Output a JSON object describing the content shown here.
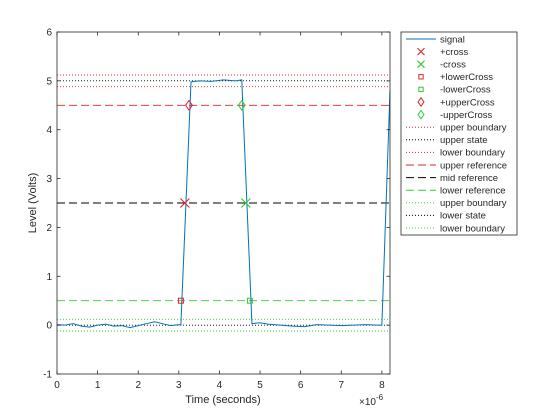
{
  "chart_data": {
    "type": "line",
    "xlabel": "Time (seconds)",
    "ylabel": "Level (Volts)",
    "x_exponent_label": "×10",
    "x_exponent_power": "-6",
    "x_scale": 1e-06,
    "xlim": [
      0,
      8.2
    ],
    "ylim": [
      -1,
      6
    ],
    "grid": false,
    "legend_placement": "outside-right-top",
    "x_ticks": [
      0,
      1,
      2,
      3,
      4,
      5,
      6,
      7,
      8
    ],
    "x_tick_labels": [
      "0",
      "1",
      "2",
      "3",
      "4",
      "5",
      "6",
      "7",
      "8"
    ],
    "y_ticks": [
      -1,
      0,
      1,
      2,
      3,
      4,
      5,
      6
    ],
    "y_tick_labels": [
      "-1",
      "0",
      "1",
      "2",
      "3",
      "4",
      "5",
      "6"
    ],
    "signal": {
      "name": "signal",
      "color": "#0072bd",
      "x": [
        0,
        0.2,
        0.4,
        0.6,
        0.8,
        1.0,
        1.2,
        1.4,
        1.6,
        1.8,
        2.0,
        2.2,
        2.4,
        2.6,
        2.8,
        3.0,
        3.05,
        3.3,
        3.5,
        3.8,
        4.1,
        4.4,
        4.55,
        4.8,
        5.0,
        5.2,
        5.5,
        5.8,
        6.1,
        6.4,
        6.7,
        7.0,
        7.3,
        7.6,
        7.9,
        8.0,
        8.2
      ],
      "y": [
        0.01,
        0.0,
        0.03,
        -0.02,
        -0.04,
        0.0,
        0.02,
        -0.02,
        -0.01,
        -0.05,
        -0.01,
        0.03,
        0.07,
        0.03,
        -0.01,
        0.01,
        0.0,
        4.98,
        5.0,
        4.99,
        5.02,
        5.0,
        5.02,
        0.03,
        0.05,
        0.02,
        0.0,
        -0.02,
        -0.03,
        0.01,
        0.0,
        -0.01,
        0.0,
        0.01,
        0.0,
        0.0,
        4.8
      ]
    },
    "reference_lines": [
      {
        "name": "upper boundary",
        "value": 5.12,
        "color": "#d9252a",
        "style": "dotted"
      },
      {
        "name": "upper state",
        "value": 5.0,
        "color": "#000000",
        "style": "dotted"
      },
      {
        "name": "lower boundary",
        "value": 4.88,
        "color": "#d9252a",
        "style": "dotted"
      },
      {
        "name": "upper reference",
        "value": 4.5,
        "color": "#d9252a",
        "style": "dashed"
      },
      {
        "name": "mid reference",
        "value": 2.5,
        "color": "#000000",
        "style": "dashed"
      },
      {
        "name": "lower reference",
        "value": 0.5,
        "color": "#34c834",
        "style": "dashed"
      },
      {
        "name": "upper boundary",
        "value": 0.12,
        "color": "#34c834",
        "style": "dotted"
      },
      {
        "name": "lower state",
        "value": 0.0,
        "color": "#000000",
        "style": "dotted"
      },
      {
        "name": "lower boundary",
        "value": -0.12,
        "color": "#34c834",
        "style": "dotted"
      }
    ],
    "markers": [
      {
        "name": "+cross",
        "x": 3.15,
        "y": 2.5,
        "marker": "x",
        "color": "#d9252a"
      },
      {
        "name": "-cross",
        "x": 4.65,
        "y": 2.5,
        "marker": "x",
        "color": "#34c834"
      },
      {
        "name": "+lowerCross",
        "x": 3.05,
        "y": 0.5,
        "marker": "square",
        "color": "#d9252a"
      },
      {
        "name": "-lowerCross",
        "x": 4.75,
        "y": 0.5,
        "marker": "square",
        "color": "#34c834"
      },
      {
        "name": "+upperCross",
        "x": 3.25,
        "y": 4.5,
        "marker": "diamond",
        "color": "#d9252a"
      },
      {
        "name": "-upperCross",
        "x": 4.55,
        "y": 4.5,
        "marker": "diamond",
        "color": "#34c834"
      }
    ],
    "legend": [
      {
        "label": "signal",
        "kind": "line",
        "style": "solid",
        "color": "#0072bd"
      },
      {
        "label": "+cross",
        "kind": "marker",
        "marker": "x",
        "color": "#d9252a"
      },
      {
        "label": "-cross",
        "kind": "marker",
        "marker": "x",
        "color": "#34c834"
      },
      {
        "label": "+lowerCross",
        "kind": "marker",
        "marker": "square",
        "color": "#d9252a"
      },
      {
        "label": "-lowerCross",
        "kind": "marker",
        "marker": "square",
        "color": "#34c834"
      },
      {
        "label": "+upperCross",
        "kind": "marker",
        "marker": "diamond",
        "color": "#d9252a"
      },
      {
        "label": "-upperCross",
        "kind": "marker",
        "marker": "diamond",
        "color": "#34c834"
      },
      {
        "label": "upper boundary",
        "kind": "line",
        "style": "dotted",
        "color": "#d9252a"
      },
      {
        "label": "upper state",
        "kind": "line",
        "style": "dotted",
        "color": "#000000"
      },
      {
        "label": "lower boundary",
        "kind": "line",
        "style": "dotted",
        "color": "#d9252a"
      },
      {
        "label": "upper reference",
        "kind": "line",
        "style": "dashed",
        "color": "#d9252a"
      },
      {
        "label": "mid reference",
        "kind": "line",
        "style": "dashed",
        "color": "#000000"
      },
      {
        "label": "lower reference",
        "kind": "line",
        "style": "dashed",
        "color": "#34c834"
      },
      {
        "label": "upper boundary",
        "kind": "line",
        "style": "dotted",
        "color": "#34c834"
      },
      {
        "label": "lower state",
        "kind": "line",
        "style": "dotted",
        "color": "#000000"
      },
      {
        "label": "lower boundary",
        "kind": "line",
        "style": "dotted",
        "color": "#34c834"
      }
    ]
  }
}
